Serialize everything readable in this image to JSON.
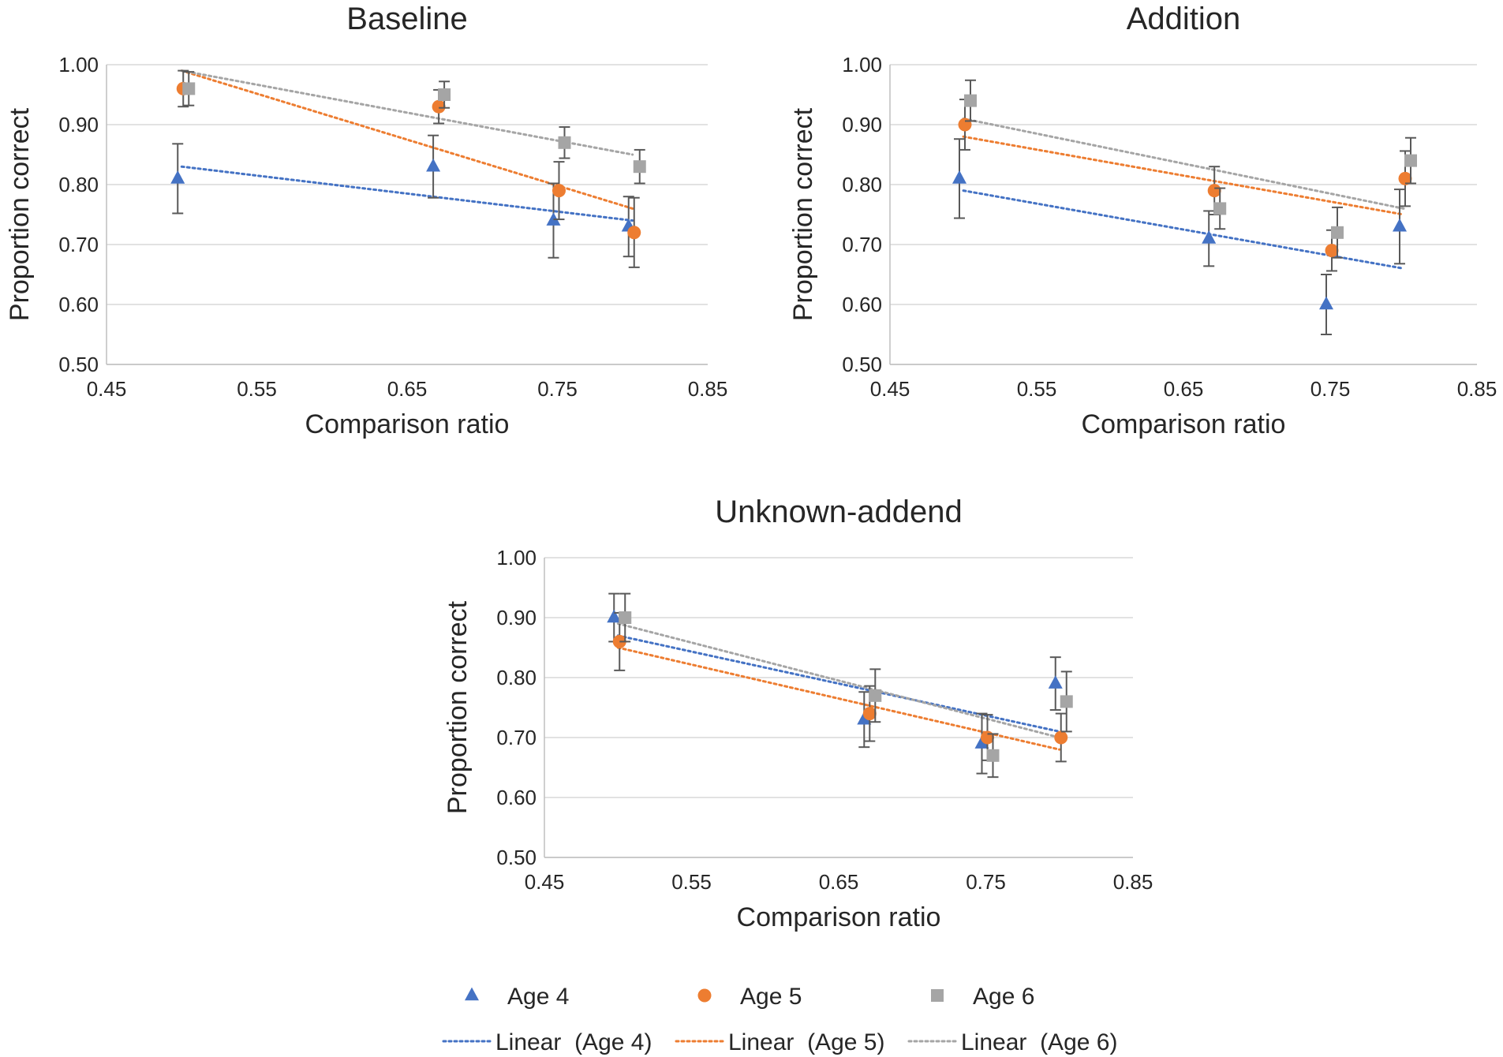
{
  "chart_data": [
    {
      "type": "scatter",
      "title": "Baseline",
      "xlabel": "Comparison ratio",
      "ylabel": "Proportion correct",
      "xlim": [
        0.45,
        0.85
      ],
      "ylim": [
        0.5,
        1.0
      ],
      "xticks": [
        "0.45",
        "0.55",
        "0.65",
        "0.75",
        "0.85"
      ],
      "yticks": [
        "0.50",
        "0.60",
        "0.70",
        "0.80",
        "0.90",
        "1.00"
      ],
      "grid": "horizontal",
      "series": [
        {
          "name": "Age 4",
          "marker": "triangle",
          "color": "#4472C4",
          "x": [
            0.5,
            0.67,
            0.75,
            0.8
          ],
          "y": [
            0.81,
            0.83,
            0.74,
            0.73
          ],
          "err": [
            0.058,
            0.052,
            0.062,
            0.05
          ],
          "trend": {
            "x": [
              0.5,
              0.8
            ],
            "y": [
              0.83,
              0.74
            ]
          }
        },
        {
          "name": "Age 5",
          "marker": "circle",
          "color": "#ED7D31",
          "x": [
            0.5,
            0.67,
            0.75,
            0.8
          ],
          "y": [
            0.96,
            0.93,
            0.79,
            0.72
          ],
          "err": [
            0.03,
            0.028,
            0.048,
            0.058
          ],
          "trend": {
            "x": [
              0.5,
              0.8
            ],
            "y": [
              0.99,
              0.76
            ]
          }
        },
        {
          "name": "Age 6",
          "marker": "square",
          "color": "#A5A5A5",
          "x": [
            0.5,
            0.67,
            0.75,
            0.8
          ],
          "y": [
            0.96,
            0.95,
            0.87,
            0.83
          ],
          "err": [
            0.028,
            0.022,
            0.026,
            0.028
          ],
          "trend": {
            "x": [
              0.5,
              0.8
            ],
            "y": [
              0.99,
              0.85
            ]
          }
        }
      ]
    },
    {
      "type": "scatter",
      "title": "Addition",
      "xlabel": "Comparison ratio",
      "ylabel": "Proportion correct",
      "xlim": [
        0.45,
        0.85
      ],
      "ylim": [
        0.5,
        1.0
      ],
      "xticks": [
        "0.45",
        "0.55",
        "0.65",
        "0.75",
        "0.85"
      ],
      "yticks": [
        "0.50",
        "0.60",
        "0.70",
        "0.80",
        "0.90",
        "1.00"
      ],
      "grid": "horizontal",
      "series": [
        {
          "name": "Age 4",
          "marker": "triangle",
          "color": "#4472C4",
          "x": [
            0.5,
            0.67,
            0.75,
            0.8
          ],
          "y": [
            0.81,
            0.71,
            0.6,
            0.73
          ],
          "err": [
            0.066,
            0.046,
            0.05,
            0.062
          ],
          "trend": {
            "x": [
              0.5,
              0.8
            ],
            "y": [
              0.79,
              0.66
            ]
          }
        },
        {
          "name": "Age 5",
          "marker": "circle",
          "color": "#ED7D31",
          "x": [
            0.5,
            0.67,
            0.75,
            0.8
          ],
          "y": [
            0.9,
            0.79,
            0.69,
            0.81
          ],
          "err": [
            0.042,
            0.04,
            0.034,
            0.046
          ],
          "trend": {
            "x": [
              0.5,
              0.8
            ],
            "y": [
              0.88,
              0.75
            ]
          }
        },
        {
          "name": "Age 6",
          "marker": "square",
          "color": "#A5A5A5",
          "x": [
            0.5,
            0.67,
            0.75,
            0.8
          ],
          "y": [
            0.94,
            0.76,
            0.72,
            0.84
          ],
          "err": [
            0.034,
            0.034,
            0.042,
            0.038
          ],
          "trend": {
            "x": [
              0.5,
              0.8
            ],
            "y": [
              0.91,
              0.76
            ]
          }
        }
      ]
    },
    {
      "type": "scatter",
      "title": "Unknown-addend",
      "xlabel": "Comparison ratio",
      "ylabel": "Proportion correct",
      "xlim": [
        0.45,
        0.85
      ],
      "ylim": [
        0.5,
        1.0
      ],
      "xticks": [
        "0.45",
        "0.55",
        "0.65",
        "0.75",
        "0.85"
      ],
      "yticks": [
        "0.50",
        "0.60",
        "0.70",
        "0.80",
        "0.90",
        "1.00"
      ],
      "grid": "horizontal",
      "series": [
        {
          "name": "Age 4",
          "marker": "triangle",
          "color": "#4472C4",
          "x": [
            0.5,
            0.67,
            0.75,
            0.8
          ],
          "y": [
            0.9,
            0.73,
            0.69,
            0.79
          ],
          "err": [
            0.04,
            0.046,
            0.05,
            0.044
          ],
          "trend": {
            "x": [
              0.5,
              0.8
            ],
            "y": [
              0.87,
              0.71
            ]
          }
        },
        {
          "name": "Age 5",
          "marker": "circle",
          "color": "#ED7D31",
          "x": [
            0.5,
            0.67,
            0.75,
            0.8
          ],
          "y": [
            0.86,
            0.74,
            0.7,
            0.7
          ],
          "err": [
            0.048,
            0.046,
            0.038,
            0.04
          ],
          "trend": {
            "x": [
              0.5,
              0.8
            ],
            "y": [
              0.85,
              0.68
            ]
          }
        },
        {
          "name": "Age 6",
          "marker": "square",
          "color": "#A5A5A5",
          "x": [
            0.5,
            0.67,
            0.75,
            0.8
          ],
          "y": [
            0.9,
            0.77,
            0.67,
            0.76
          ],
          "err": [
            0.04,
            0.044,
            0.036,
            0.05
          ],
          "trend": {
            "x": [
              0.5,
              0.8
            ],
            "y": [
              0.89,
              0.7
            ]
          }
        }
      ]
    }
  ],
  "legend": {
    "markers": [
      {
        "label": "Age 4",
        "marker": "triangle",
        "color": "#4472C4"
      },
      {
        "label": "Age 5",
        "marker": "circle",
        "color": "#ED7D31"
      },
      {
        "label": "Age 6",
        "marker": "square",
        "color": "#A5A5A5"
      }
    ],
    "lines": [
      {
        "label": "Linear  (Age 4)",
        "color": "#4472C4"
      },
      {
        "label": "Linear  (Age 5)",
        "color": "#ED7D31"
      },
      {
        "label": "Linear  (Age 6)",
        "color": "#A5A5A5"
      }
    ]
  }
}
